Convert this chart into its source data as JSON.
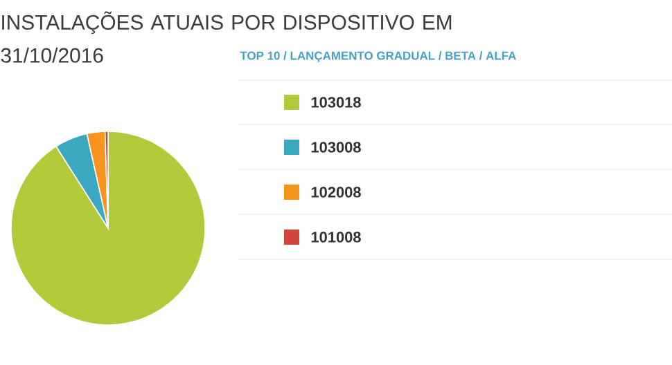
{
  "chart_data": {
    "type": "pie",
    "title": "INSTALAÇÕES ATUAIS POR DISPOSITIVO EM 31/10/2016",
    "annotations": [
      "TOP 10 / LANÇAMENTO GRADUAL / BETA / ALFA"
    ],
    "categories": [
      "103018",
      "103008",
      "102008",
      "101008"
    ],
    "values": [
      91,
      5.5,
      3,
      0.5
    ],
    "colors": [
      "#b2c93a",
      "#3aa8c1",
      "#f7941d",
      "#d0463a"
    ],
    "legend": "right"
  }
}
